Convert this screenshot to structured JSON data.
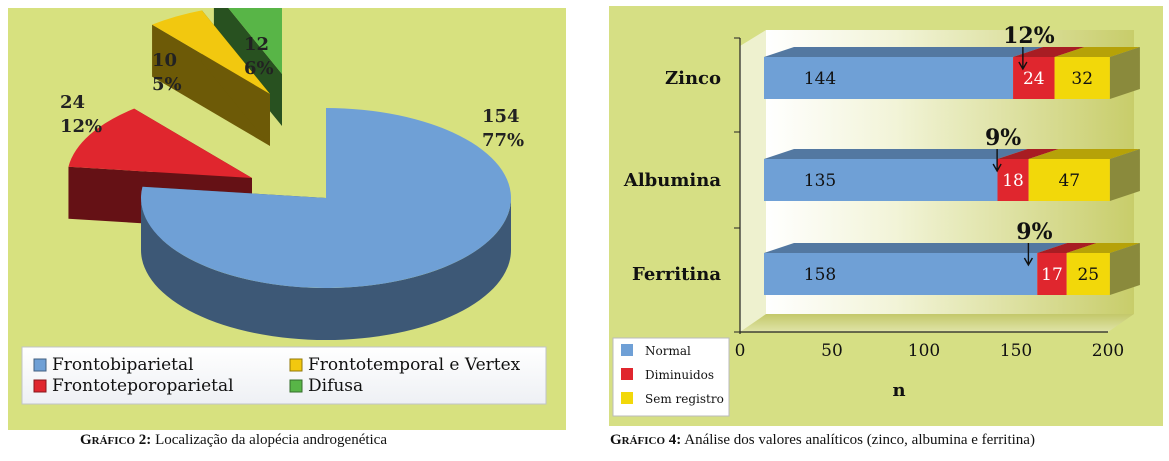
{
  "captions": {
    "left_label": "Gráfico 2:",
    "left_text": " Localização da alopécia androgenética",
    "right_label": "Gráfico 4:",
    "right_text": " Análise dos valores analíticos (zinco, albumina e ferritina)"
  },
  "chart_data": [
    {
      "type": "pie",
      "title": "",
      "slices": [
        {
          "label": "Frontobiparietal",
          "value": 154,
          "percent": "77%",
          "color": "#6fa0d6"
        },
        {
          "label": "Frontoteporoparietal",
          "value": 24,
          "percent": "12%",
          "color": "#e0262e"
        },
        {
          "label": "Frontotemporal e Vertex",
          "value": 10,
          "percent": "5%",
          "color": "#f2c80f"
        },
        {
          "label": "Difusa",
          "value": 12,
          "percent": "6%",
          "color": "#58b547"
        }
      ],
      "legend_position": "bottom"
    },
    {
      "type": "bar",
      "orientation": "horizontal",
      "stacked": true,
      "categories": [
        "Zinco",
        "Albumina",
        "Ferritina"
      ],
      "series": [
        {
          "name": "Normal",
          "values": [
            144,
            135,
            158
          ],
          "color": "#6fa0d6"
        },
        {
          "name": "Diminuidos",
          "values": [
            24,
            18,
            17
          ],
          "color": "#e0262e"
        },
        {
          "name": "Sem registro",
          "values": [
            32,
            47,
            25
          ],
          "color": "#f2d80a"
        }
      ],
      "annotations": [
        "12%",
        "9%",
        "9%"
      ],
      "xlabel": "n",
      "xlim": [
        0,
        200
      ],
      "xticks": [
        "0",
        "50",
        "100",
        "150",
        "200"
      ],
      "legend_position": "bottom-left"
    }
  ]
}
